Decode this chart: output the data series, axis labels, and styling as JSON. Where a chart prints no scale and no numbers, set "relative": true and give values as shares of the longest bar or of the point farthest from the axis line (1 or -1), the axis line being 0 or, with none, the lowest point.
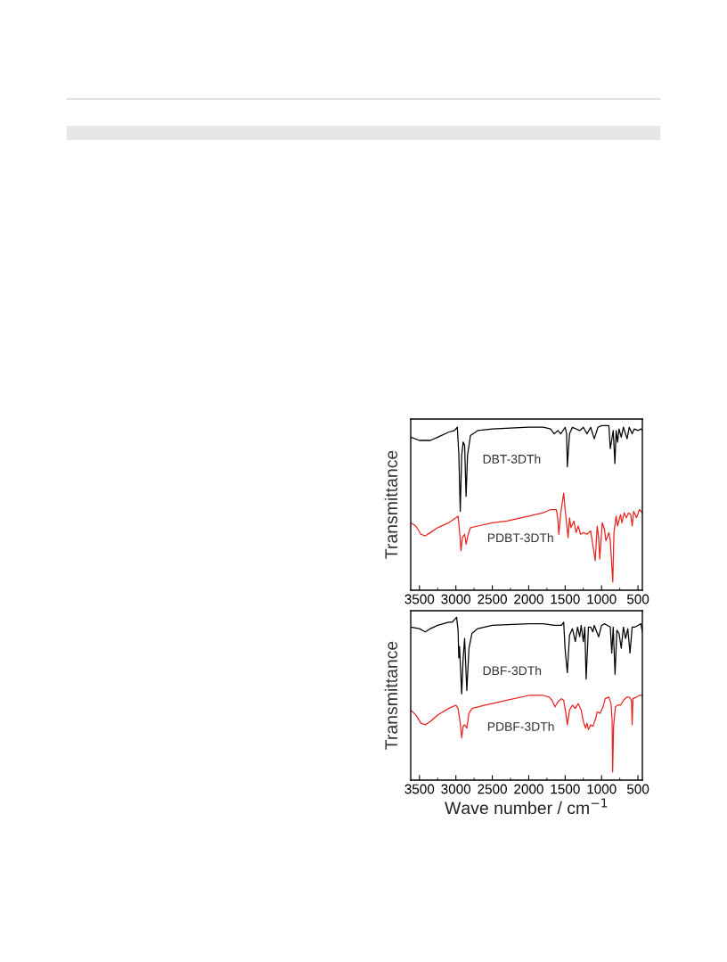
{
  "chart_data": [
    {
      "type": "line",
      "relative": true,
      "ylabel": "Transmittance",
      "xlim": [
        3620,
        440
      ],
      "xticks": [
        3500,
        3000,
        2500,
        2000,
        1500,
        1000,
        500
      ],
      "grid": false,
      "legend": false,
      "series": [
        {
          "name": "DBT-3DTh",
          "color": "#000000",
          "x": [
            3620,
            3500,
            3420,
            3350,
            3250,
            3100,
            3020,
            2980,
            2960,
            2940,
            2920,
            2900,
            2880,
            2860,
            2840,
            2800,
            2700,
            2500,
            2000,
            1800,
            1700,
            1650,
            1600,
            1560,
            1500,
            1480,
            1470,
            1440,
            1400,
            1300,
            1250,
            1200,
            1150,
            1100,
            1050,
            1000,
            900,
            880,
            840,
            817,
            800,
            780,
            760,
            730,
            700,
            650,
            620,
            580,
            550,
            500,
            460,
            440
          ],
          "values": [
            0.93,
            0.91,
            0.91,
            0.91,
            0.93,
            0.96,
            0.97,
            0.99,
            0.83,
            0.48,
            0.82,
            0.9,
            0.88,
            0.57,
            0.82,
            0.94,
            0.97,
            0.98,
            0.99,
            0.99,
            0.98,
            0.95,
            0.97,
            0.95,
            0.99,
            0.95,
            0.75,
            0.95,
            0.99,
            0.97,
            0.99,
            0.95,
            0.99,
            0.92,
            0.99,
            1.0,
            1.0,
            0.86,
            0.97,
            0.77,
            0.97,
            0.9,
            0.98,
            0.93,
            0.99,
            0.92,
            0.99,
            0.95,
            0.98,
            0.97,
            0.98,
            0.97
          ]
        },
        {
          "name": "PDBT-3DTh",
          "color": "#e8241f",
          "x": [
            3620,
            3550,
            3480,
            3420,
            3350,
            3250,
            3100,
            3000,
            2970,
            2950,
            2930,
            2910,
            2880,
            2860,
            2830,
            2800,
            2700,
            2500,
            2300,
            2000,
            1800,
            1700,
            1620,
            1600,
            1587,
            1560,
            1540,
            1520,
            1500,
            1460,
            1440,
            1420,
            1380,
            1350,
            1320,
            1290,
            1250,
            1200,
            1150,
            1087,
            1060,
            1040,
            1025,
            990,
            960,
            940,
            900,
            880,
            846,
            830,
            800,
            780,
            740,
            720,
            690,
            660,
            630,
            600,
            580,
            560,
            520,
            480,
            440
          ],
          "values": [
            0.41,
            0.39,
            0.34,
            0.33,
            0.35,
            0.38,
            0.41,
            0.44,
            0.45,
            0.36,
            0.24,
            0.32,
            0.34,
            0.28,
            0.34,
            0.38,
            0.39,
            0.41,
            0.42,
            0.45,
            0.47,
            0.49,
            0.49,
            0.43,
            0.34,
            0.47,
            0.53,
            0.59,
            0.49,
            0.32,
            0.44,
            0.38,
            0.42,
            0.35,
            0.39,
            0.34,
            0.35,
            0.34,
            0.36,
            0.18,
            0.39,
            0.32,
            0.19,
            0.41,
            0.37,
            0.3,
            0.35,
            0.3,
            0.05,
            0.35,
            0.45,
            0.39,
            0.46,
            0.41,
            0.47,
            0.44,
            0.47,
            0.46,
            0.39,
            0.48,
            0.44,
            0.49,
            0.47
          ]
        }
      ]
    },
    {
      "type": "line",
      "relative": true,
      "ylabel": "Transmittance",
      "xlabel": "Wave number / cm$^{−1}$",
      "xlim": [
        3620,
        440
      ],
      "xticks": [
        3500,
        3000,
        2500,
        2000,
        1500,
        1000,
        500
      ],
      "grid": false,
      "legend": false,
      "series": [
        {
          "name": "DBF-3DTh",
          "color": "#000000",
          "x": [
            3620,
            3500,
            3420,
            3350,
            3250,
            3100,
            3050,
            3010,
            2990,
            2970,
            2960,
            2950,
            2920,
            2900,
            2880,
            2850,
            2820,
            2780,
            2700,
            2500,
            2000,
            1800,
            1650,
            1550,
            1520,
            1500,
            1470,
            1440,
            1400,
            1360,
            1330,
            1300,
            1280,
            1250,
            1230,
            1212,
            1180,
            1150,
            1120,
            1100,
            1040,
            1000,
            960,
            920,
            880,
            860,
            840,
            815,
            790,
            760,
            730,
            700,
            670,
            640,
            610,
            580,
            540,
            500,
            460,
            440
          ],
          "values": [
            0.94,
            0.93,
            0.91,
            0.93,
            0.95,
            0.97,
            0.97,
            0.99,
            1.0,
            0.92,
            0.75,
            0.82,
            0.53,
            0.75,
            0.87,
            0.55,
            0.81,
            0.9,
            0.93,
            0.95,
            0.96,
            0.96,
            0.95,
            0.95,
            0.97,
            0.8,
            0.66,
            0.89,
            0.93,
            0.85,
            0.94,
            0.88,
            0.95,
            0.85,
            0.94,
            0.62,
            0.94,
            0.94,
            0.91,
            0.95,
            0.88,
            0.95,
            0.96,
            0.95,
            0.94,
            0.78,
            0.94,
            0.65,
            0.92,
            0.9,
            0.81,
            0.94,
            0.87,
            0.93,
            0.78,
            0.94,
            0.94,
            0.95,
            0.96,
            0.91
          ]
        },
        {
          "name": "PDBF-3DTh",
          "color": "#e8241f",
          "x": [
            3620,
            3550,
            3480,
            3420,
            3350,
            3250,
            3100,
            3000,
            2970,
            2940,
            2920,
            2900,
            2880,
            2850,
            2820,
            2780,
            2600,
            2500,
            2300,
            2000,
            1800,
            1720,
            1680,
            1640,
            1600,
            1550,
            1520,
            1490,
            1470,
            1440,
            1400,
            1360,
            1320,
            1280,
            1250,
            1220,
            1200,
            1180,
            1150,
            1120,
            1080,
            1060,
            1020,
            980,
            950,
            900,
            870,
            855,
            848,
            835,
            810,
            780,
            740,
            700,
            650,
            620,
            590,
            580,
            570,
            520,
            480,
            440
          ],
          "values": [
            0.43,
            0.4,
            0.35,
            0.34,
            0.36,
            0.4,
            0.44,
            0.46,
            0.44,
            0.35,
            0.26,
            0.33,
            0.34,
            0.32,
            0.41,
            0.44,
            0.46,
            0.47,
            0.49,
            0.52,
            0.52,
            0.51,
            0.49,
            0.45,
            0.48,
            0.5,
            0.49,
            0.41,
            0.34,
            0.43,
            0.46,
            0.44,
            0.47,
            0.43,
            0.36,
            0.32,
            0.35,
            0.31,
            0.34,
            0.33,
            0.38,
            0.42,
            0.41,
            0.45,
            0.5,
            0.51,
            0.47,
            0.36,
            0.05,
            0.33,
            0.45,
            0.46,
            0.46,
            0.49,
            0.51,
            0.51,
            0.49,
            0.34,
            0.5,
            0.51,
            0.52,
            0.52
          ]
        }
      ]
    }
  ]
}
